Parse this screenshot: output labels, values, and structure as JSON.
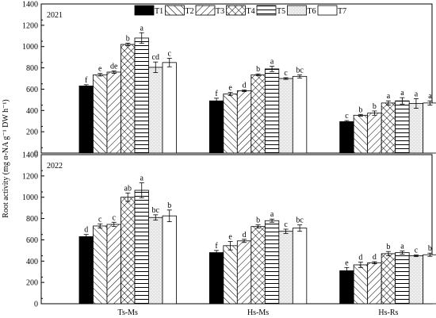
{
  "chart_data": {
    "type": "bar",
    "ylabel": "Root activity (mg α-NA g⁻¹ DW h⁻¹)",
    "categories": [
      "Ts-Ms",
      "Hs-Ms",
      "Hs-Rs"
    ],
    "ylim": [
      0,
      1400
    ],
    "yticks": [
      0,
      200,
      400,
      600,
      800,
      1000,
      1200,
      1400
    ],
    "legend": {
      "placement": "top",
      "entries": [
        "T1",
        "T2",
        "T3",
        "T4",
        "T5",
        "T6",
        "T7"
      ]
    },
    "series_patterns": [
      "solid-black",
      "forward-diagonal",
      "back-diagonal",
      "crosshatch",
      "horizontal-lines",
      "light-gray-dotted",
      "white"
    ],
    "panels": [
      {
        "panel_label": "2021",
        "series": [
          {
            "name": "T1",
            "values": [
              630,
              490,
              295
            ],
            "errors": [
              12,
              25,
              10
            ],
            "letters": [
              "f",
              "f",
              "c"
            ]
          },
          {
            "name": "T2",
            "values": [
              735,
              555,
              355
            ],
            "errors": [
              12,
              15,
              8
            ],
            "letters": [
              "e",
              "e",
              "b"
            ]
          },
          {
            "name": "T3",
            "values": [
              760,
              585,
              375
            ],
            "errors": [
              12,
              8,
              20
            ],
            "letters": [
              "de",
              "d",
              "b"
            ]
          },
          {
            "name": "T4",
            "values": [
              1020,
              735,
              470
            ],
            "errors": [
              12,
              8,
              20
            ],
            "letters": [
              "b",
              "b",
              "a"
            ]
          },
          {
            "name": "T5",
            "values": [
              1080,
              790,
              490
            ],
            "errors": [
              50,
              25,
              30
            ],
            "letters": [
              "a",
              "a",
              "a"
            ]
          },
          {
            "name": "T6",
            "values": [
              805,
              700,
              465
            ],
            "errors": [
              50,
              8,
              45
            ],
            "letters": [
              "cd",
              "c",
              "a"
            ]
          },
          {
            "name": "T7",
            "values": [
              850,
              720,
              470
            ],
            "errors": [
              40,
              15,
              20
            ],
            "letters": [
              "c",
              "bc",
              "a"
            ]
          }
        ]
      },
      {
        "panel_label": "2022",
        "series": [
          {
            "name": "T1",
            "values": [
              630,
              480,
              310
            ],
            "errors": [
              20,
              20,
              30
            ],
            "letters": [
              "d",
              "f",
              "e"
            ]
          },
          {
            "name": "T2",
            "values": [
              730,
              545,
              365
            ],
            "errors": [
              20,
              40,
              25
            ],
            "letters": [
              "c",
              "e",
              "d"
            ]
          },
          {
            "name": "T3",
            "values": [
              745,
              590,
              385
            ],
            "errors": [
              20,
              15,
              10
            ],
            "letters": [
              "c",
              "d",
              "d"
            ]
          },
          {
            "name": "T4",
            "values": [
              1000,
              725,
              470
            ],
            "errors": [
              40,
              15,
              20
            ],
            "letters": [
              "ab",
              "b",
              "b"
            ]
          },
          {
            "name": "T5",
            "values": [
              1065,
              780,
              480
            ],
            "errors": [
              70,
              15,
              15
            ],
            "letters": [
              "a",
              "a",
              "a"
            ]
          },
          {
            "name": "T6",
            "values": [
              810,
              680,
              450
            ],
            "errors": [
              25,
              20,
              8
            ],
            "letters": [
              "bc",
              "c",
              "c"
            ]
          },
          {
            "name": "T7",
            "values": [
              825,
              710,
              460
            ],
            "errors": [
              55,
              30,
              15
            ],
            "letters": [
              "b",
              "bc",
              "b"
            ]
          }
        ]
      }
    ]
  }
}
